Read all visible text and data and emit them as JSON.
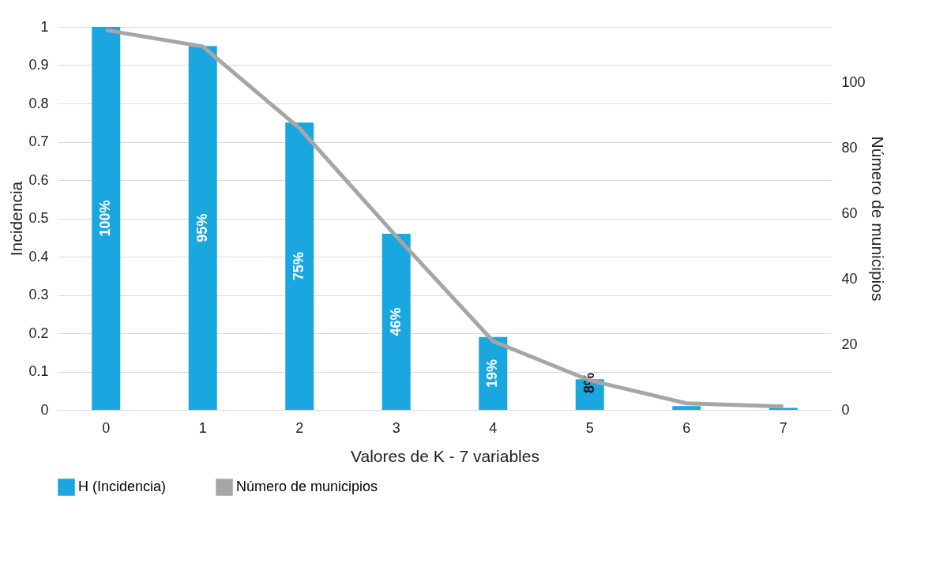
{
  "chart_data": {
    "type": "bar",
    "xlabel": "Valores de K - 7 variables",
    "ylabel": "Incidencia",
    "y2label": "Número de municipios",
    "categories": [
      "0",
      "1",
      "2",
      "3",
      "4",
      "5",
      "6",
      "7"
    ],
    "series": [
      {
        "name": "H (Incidencia)",
        "color": "#1aa7e0",
        "values": [
          1,
          0.95,
          0.75,
          0.46,
          0.19,
          0.08,
          0.01,
          0.005
        ],
        "value_labels": [
          "100%",
          "95%",
          "75%",
          "46%",
          "19%",
          "8%",
          null,
          null
        ]
      },
      {
        "name": "Número de municipios",
        "type": "line",
        "axis": "y2",
        "color": "#a6a6a6",
        "values": [
          116,
          111,
          86,
          53,
          21,
          9,
          2,
          1
        ]
      }
    ],
    "ylim": [
      0,
      1
    ],
    "yticks": [
      0,
      0.1,
      0.2,
      0.3,
      0.4,
      0.5,
      0.6,
      0.7,
      0.8,
      0.9,
      1
    ],
    "y2lim": [
      0,
      117
    ],
    "y2ticks": [
      0,
      20,
      40,
      60,
      80,
      100
    ],
    "grid": "y",
    "legend": "bottom",
    "line_style": "solid"
  }
}
